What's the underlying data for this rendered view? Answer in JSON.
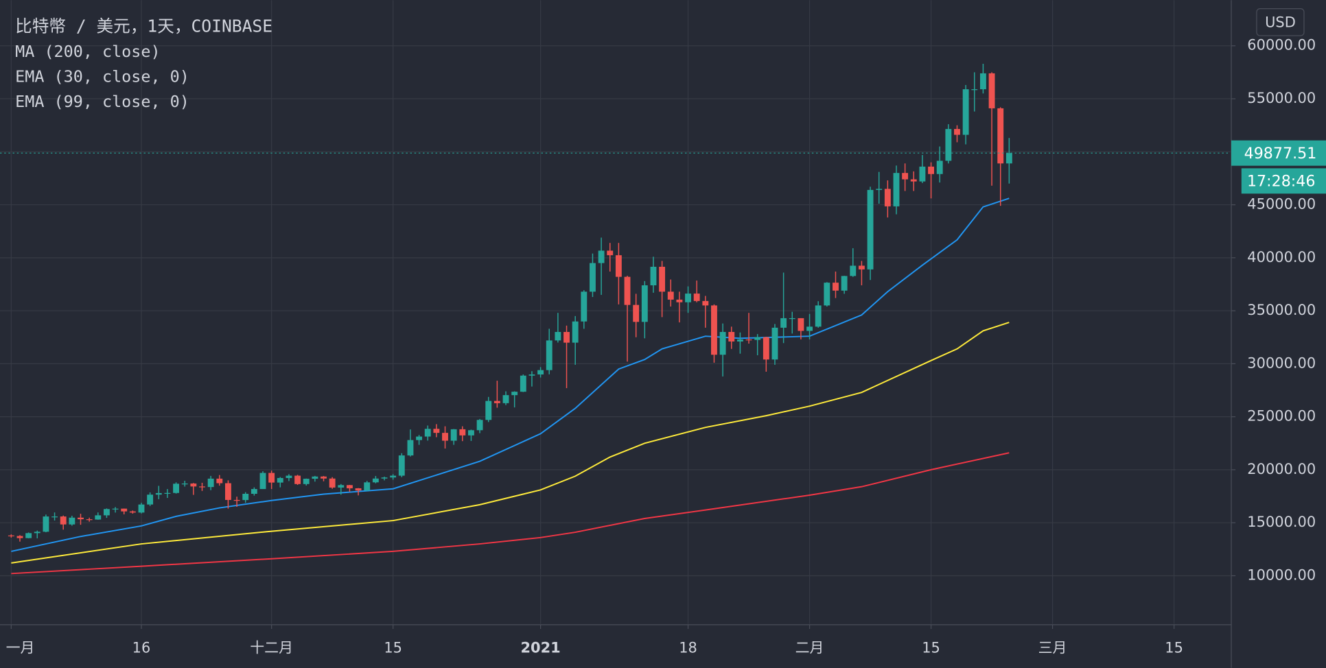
{
  "chart_data": {
    "type": "candlestick",
    "title": "比特幣 / 美元，1天，COINBASE",
    "axis_unit": "USD",
    "countdown": "17:28:46",
    "xlim": [
      -1,
      140.5
    ],
    "ylim": [
      5460,
      64300
    ],
    "grid": true,
    "up_color": "#26a69a",
    "down_color": "#ef5350",
    "xticks": [
      {
        "value": 0,
        "label": "一月"
      },
      {
        "value": 15,
        "label": "16"
      },
      {
        "value": 30,
        "label": "十二月"
      },
      {
        "value": 44,
        "label": "15"
      },
      {
        "value": 61,
        "label": "2021"
      },
      {
        "value": 78,
        "label": "18"
      },
      {
        "value": 92,
        "label": "二月"
      },
      {
        "value": 106,
        "label": "15"
      },
      {
        "value": 120,
        "label": "三月"
      },
      {
        "value": 134,
        "label": "15"
      }
    ],
    "yticks": [
      {
        "value": 10000,
        "label": "10000.00"
      },
      {
        "value": 15000,
        "label": "15000.00"
      },
      {
        "value": 20000,
        "label": "20000.00"
      },
      {
        "value": 25000,
        "label": "25000.00"
      },
      {
        "value": 30000,
        "label": "30000.00"
      },
      {
        "value": 35000,
        "label": "35000.00"
      },
      {
        "value": 40000,
        "label": "40000.00"
      },
      {
        "value": 45000,
        "label": "45000.00"
      },
      {
        "value": 50000,
        "label": "50000.00"
      },
      {
        "value": 55000,
        "label": "55000.00"
      },
      {
        "value": 60000,
        "label": "60000.00"
      }
    ],
    "open": [
      13800,
      13750,
      13550,
      14020,
      14150,
      15590,
      15590,
      14840,
      15480,
      15330,
      15300,
      15700,
      16290,
      16330,
      16070,
      15960,
      16720,
      17650,
      17800,
      17810,
      18680,
      18700,
      18420,
      18370,
      19160,
      18730,
      17150,
      17140,
      17730,
      18180,
      19700,
      18790,
      19220,
      19440,
      18650,
      19150,
      19360,
      19170,
      18320,
      18550,
      18250,
      18040,
      18810,
      19170,
      19270,
      19440,
      21350,
      22800,
      23130,
      23860,
      23480,
      22740,
      23820,
      23240,
      23730,
      24700,
      26490,
      26280,
      27040,
      27360,
      28880,
      28990,
      29400,
      32200,
      33000,
      31990,
      33990,
      36800,
      39500,
      40670,
      40240,
      38200,
      35550,
      33950,
      37400,
      39150,
      36800,
      36050,
      35800,
      36620,
      35920,
      35500,
      30850,
      33000,
      32100,
      32290,
      32250,
      32510,
      30400,
      33400,
      34300,
      34300,
      33100,
      33500,
      35500,
      37650,
      36900,
      38280,
      39250,
      38900,
      46400,
      46500,
      44850,
      48000,
      47400,
      47200,
      48600,
      47900,
      49150,
      52150,
      51600,
      55900,
      55900,
      57400,
      54100,
      48900
    ],
    "high": [
      13900,
      13830,
      14080,
      14260,
      15770,
      15970,
      15680,
      15660,
      15850,
      15480,
      15970,
      16350,
      16480,
      16340,
      16150,
      16880,
      17860,
      18480,
      18180,
      18810,
      18960,
      18750,
      18770,
      19420,
      19500,
      19000,
      17460,
      17880,
      18340,
      19860,
      19920,
      19310,
      19580,
      19520,
      19170,
      19420,
      19410,
      19300,
      18650,
      18570,
      18270,
      18950,
      19410,
      19350,
      19580,
      21560,
      23800,
      23280,
      24170,
      24300,
      24100,
      23840,
      24100,
      23780,
      24790,
      26870,
      28400,
      27400,
      27400,
      28990,
      29300,
      29680,
      33300,
      34800,
      33600,
      34500,
      36940,
      40400,
      41900,
      41400,
      41400,
      38300,
      36600,
      37800,
      40100,
      39700,
      37950,
      36800,
      37300,
      37850,
      36400,
      35600,
      33800,
      33500,
      32950,
      34800,
      32800,
      32550,
      33750,
      38600,
      34900,
      34300,
      34700,
      35900,
      37700,
      38700,
      38300,
      40900,
      39700,
      46700,
      48100,
      47300,
      48700,
      48900,
      48150,
      49700,
      49000,
      50500,
      52600,
      52500,
      56300,
      57500,
      58300,
      57500,
      54200,
      51300
    ],
    "low": [
      13600,
      13220,
      13530,
      13530,
      14100,
      15210,
      14350,
      14720,
      14810,
      15100,
      15280,
      15460,
      15960,
      15790,
      15860,
      15880,
      16580,
      17220,
      17340,
      17750,
      18410,
      17630,
      18000,
      18070,
      18500,
      16330,
      16500,
      16880,
      17560,
      18180,
      18180,
      18340,
      18930,
      18570,
      18510,
      18880,
      18910,
      18200,
      17650,
      17930,
      17580,
      18000,
      18720,
      19000,
      19060,
      19300,
      21250,
      22350,
      22750,
      23070,
      22000,
      22350,
      22700,
      22720,
      23450,
      24500,
      25850,
      26100,
      25880,
      27330,
      27850,
      28700,
      29000,
      32000,
      27700,
      29900,
      33300,
      36300,
      36500,
      38700,
      35600,
      30200,
      32500,
      32400,
      36700,
      34400,
      35400,
      33900,
      34800,
      35800,
      33400,
      30100,
      28800,
      31400,
      30950,
      31900,
      30800,
      29250,
      29900,
      31950,
      32850,
      32300,
      32300,
      33400,
      35400,
      36200,
      36600,
      38200,
      37400,
      37900,
      45100,
      43800,
      44100,
      46300,
      46300,
      47050,
      45600,
      47100,
      48900,
      50900,
      50700,
      53800,
      55500,
      46800,
      44900,
      47000
    ],
    "close": [
      13750,
      13550,
      14020,
      14150,
      15590,
      15590,
      14840,
      15480,
      15330,
      15300,
      15700,
      16290,
      16330,
      16070,
      15960,
      16720,
      17650,
      17800,
      17810,
      18680,
      18700,
      18420,
      18370,
      19160,
      18730,
      17150,
      17140,
      17730,
      18180,
      19700,
      18790,
      19220,
      19440,
      18650,
      19150,
      19360,
      19170,
      18320,
      18550,
      18250,
      18040,
      18810,
      19170,
      19270,
      19440,
      21350,
      22800,
      23130,
      23860,
      23480,
      22740,
      23820,
      23240,
      23730,
      24700,
      26490,
      26280,
      27040,
      27360,
      28880,
      28990,
      29400,
      32200,
      33000,
      31990,
      33990,
      36800,
      39500,
      40670,
      40240,
      38200,
      35550,
      33950,
      37400,
      39150,
      36800,
      36050,
      35800,
      36620,
      35920,
      35500,
      30850,
      33000,
      32100,
      32290,
      32250,
      32510,
      30400,
      33400,
      34300,
      34300,
      33100,
      33500,
      35500,
      37650,
      36900,
      38280,
      39250,
      38900,
      46400,
      46500,
      44850,
      48000,
      47400,
      47200,
      48600,
      47900,
      49150,
      52150,
      51600,
      55900,
      55900,
      57400,
      54100,
      48900,
      49877.51
    ],
    "indicators": [
      {
        "name": "MA (200, close)",
        "color": "#f23645",
        "x": [
          0,
          15,
          30,
          44,
          54,
          61,
          65,
          73,
          80,
          92,
          98,
          106,
          115
        ],
        "values": [
          10200,
          10900,
          11600,
          12300,
          13000,
          13600,
          14100,
          15400,
          16200,
          17600,
          18400,
          20000,
          21600
        ]
      },
      {
        "name": "EMA (30, close, 0)",
        "color": "#2196f3",
        "x": [
          0,
          4,
          8,
          15,
          19,
          24,
          30,
          36,
          44,
          49,
          54,
          61,
          65,
          70,
          73,
          75,
          80,
          84,
          92,
          98,
          101,
          105,
          109,
          112,
          115
        ],
        "values": [
          12300,
          13000,
          13700,
          14700,
          15600,
          16400,
          17100,
          17700,
          18200,
          19500,
          20800,
          23400,
          25800,
          29500,
          30400,
          31400,
          32600,
          32400,
          32600,
          34600,
          36800,
          39300,
          41700,
          44800,
          45600
        ]
      },
      {
        "name": "EMA (99, close, 0)",
        "color": "#ffeb3b",
        "x": [
          0,
          15,
          30,
          44,
          54,
          61,
          65,
          69,
          73,
          80,
          87,
          92,
          98,
          106,
          109,
          112,
          115
        ],
        "values": [
          11200,
          13000,
          14200,
          15200,
          16700,
          18100,
          19400,
          21200,
          22500,
          24000,
          25100,
          26000,
          27300,
          30300,
          31400,
          33100,
          33900
        ]
      }
    ]
  }
}
